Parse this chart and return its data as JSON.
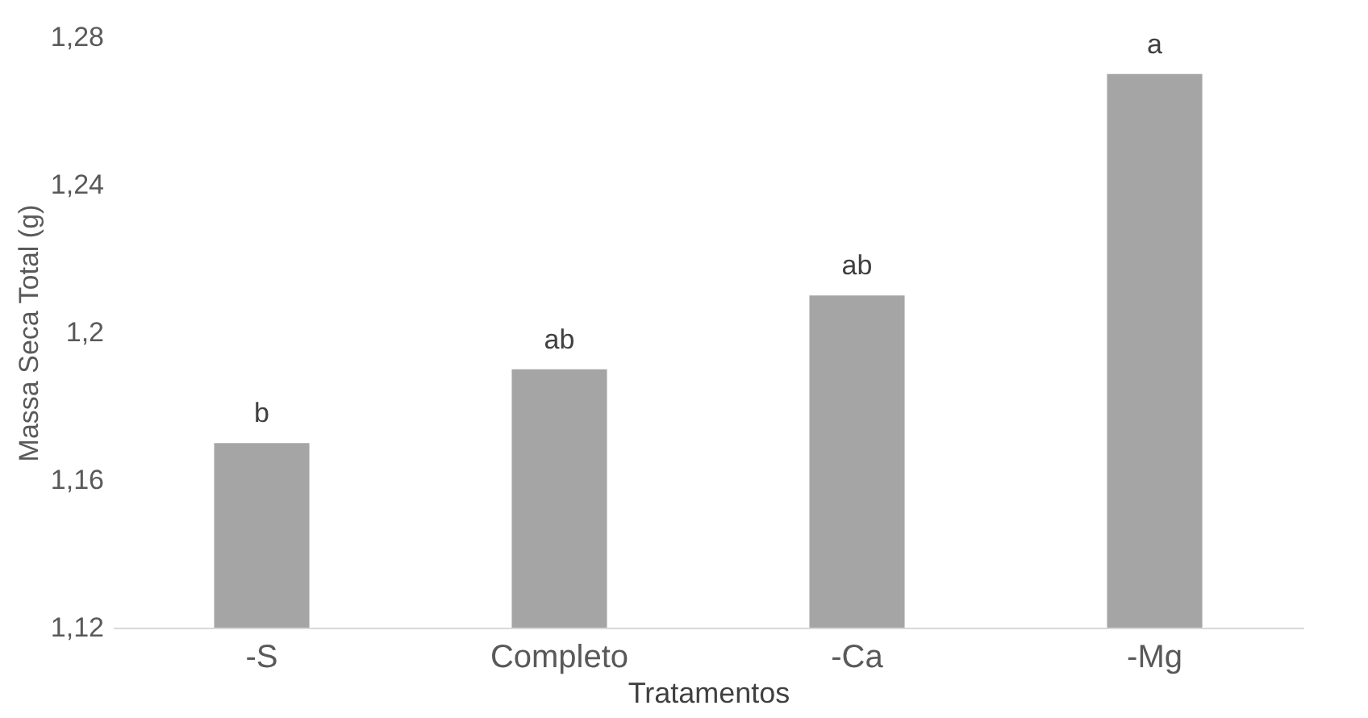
{
  "chart_data": {
    "type": "bar",
    "xlabel": "Tratamentos",
    "ylabel": "Massa Seca Total (g)",
    "categories": [
      "-S",
      "Completo",
      "-Ca",
      "-Mg"
    ],
    "values": [
      1.17,
      1.19,
      1.21,
      1.27
    ],
    "color": "#a5a5a5",
    "ylim": [
      1.12,
      1.28
    ],
    "yticks": [
      {
        "value": 1.12,
        "label": "1,12"
      },
      {
        "value": 1.16,
        "label": "1,16"
      },
      {
        "value": 1.2,
        "label": "1,2"
      },
      {
        "value": 1.24,
        "label": "1,24"
      },
      {
        "value": 1.28,
        "label": "1,28"
      }
    ],
    "grid": false,
    "annotations": [
      {
        "text": "b",
        "x": "-S",
        "y": 1.17
      },
      {
        "text": "ab",
        "x": "Completo",
        "y": 1.19
      },
      {
        "text": "ab",
        "x": "-Ca",
        "y": 1.21
      },
      {
        "text": "a",
        "x": "-Mg",
        "y": 1.27
      }
    ]
  }
}
